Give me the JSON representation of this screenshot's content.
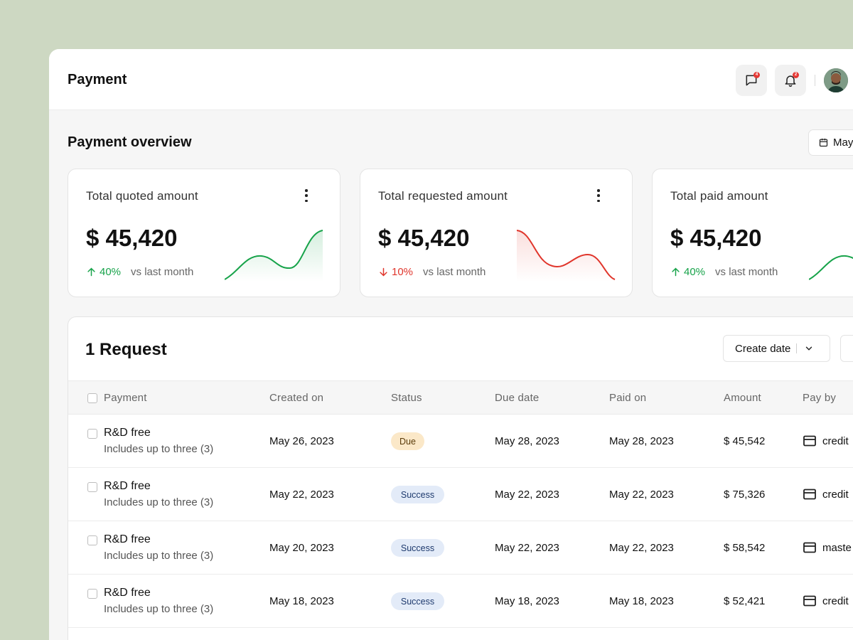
{
  "header": {
    "title": "Payment",
    "messages_badge": "4",
    "notifications_badge": "2"
  },
  "overview": {
    "title": "Payment overview",
    "date_label": "May"
  },
  "cards": [
    {
      "label": "Total quoted amount",
      "value": "$ 45,420",
      "trend": "up",
      "pct": "40%",
      "vs": "vs last month",
      "color": "#17a34a"
    },
    {
      "label": "Total requested amount",
      "value": "$ 45,420",
      "trend": "down",
      "pct": "10%",
      "vs": "vs last month",
      "color": "#e0352b"
    },
    {
      "label": "Total paid amount",
      "value": "$ 45,420",
      "trend": "up",
      "pct": "40%",
      "vs": "vs last month",
      "color": "#17a34a"
    }
  ],
  "requests": {
    "title": "1 Request",
    "filter_label": "Create date",
    "columns": [
      "Payment",
      "Created on",
      "Status",
      "Due date",
      "Paid on",
      "Amount",
      "Pay by"
    ],
    "rows": [
      {
        "name": "R&D free",
        "sub": "Includes up to three (3)",
        "created": "May 26, 2023",
        "status": "Due",
        "due": "May 28, 2023",
        "paid": "May 28, 2023",
        "amount": "$ 45,542",
        "pay_by": "credit"
      },
      {
        "name": "R&D free",
        "sub": "Includes up to three (3)",
        "created": "May 22, 2023",
        "status": "Success",
        "due": "May 22, 2023",
        "paid": "May 22, 2023",
        "amount": "$ 75,326",
        "pay_by": "credit"
      },
      {
        "name": "R&D free",
        "sub": "Includes up to three (3)",
        "created": "May 20, 2023",
        "status": "Success",
        "due": "May 22, 2023",
        "paid": "May 22, 2023",
        "amount": "$ 58,542",
        "pay_by": "maste"
      },
      {
        "name": "R&D free",
        "sub": "Includes up to three (3)",
        "created": "May 18, 2023",
        "status": "Success",
        "due": "May 18, 2023",
        "paid": "May 18, 2023",
        "amount": "$ 52,421",
        "pay_by": "credit"
      }
    ]
  },
  "colors": {
    "background": "#cdd8c2",
    "up": "#17a34a",
    "down": "#e0352b",
    "due_pill": "#fbe8c8",
    "success_pill": "#e3ebf8"
  },
  "icons": [
    "message-icon",
    "bell-icon",
    "calendar-icon",
    "kebab-menu-icon",
    "arrow-up-icon",
    "arrow-down-icon",
    "chevron-down-icon",
    "credit-card-icon"
  ]
}
